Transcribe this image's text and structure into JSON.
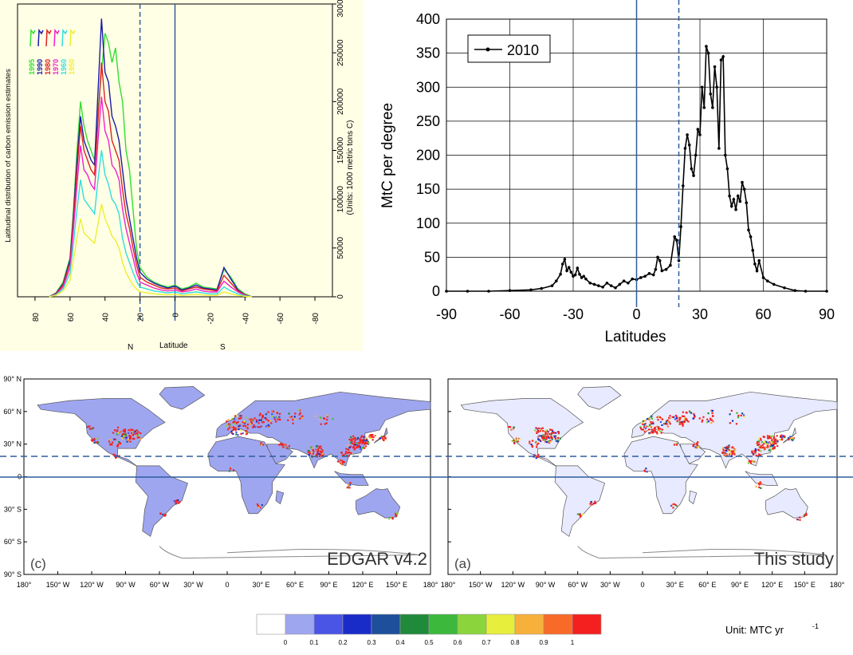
{
  "chart_data": [
    {
      "type": "line",
      "panel": "left",
      "ylabel": "Latitudinal distribution of carbon emission estimates",
      "ylabel_right": "(Units: 1000 metric tons C)",
      "xlabel": "Latitude",
      "x_hemisphere_labels": [
        "N",
        "S"
      ],
      "x_ticks": [
        80,
        60,
        40,
        20,
        0,
        -20,
        -40,
        -60,
        -80
      ],
      "x_tick_labels": [
        "80",
        "60",
        "40",
        "20",
        "0",
        "-20",
        "-40",
        "-60",
        "-80"
      ],
      "y_ticks": [
        0,
        50000,
        100000,
        150000,
        200000,
        250000,
        300000
      ],
      "y_tick_labels": [
        "0",
        "50000",
        "100000",
        "150000",
        "200000",
        "250000",
        "300000"
      ],
      "ylim": [
        0,
        300000
      ],
      "xlim": [
        90,
        -90
      ],
      "legend": [
        "1995",
        "1990",
        "1980",
        "1970",
        "1960",
        "1950"
      ],
      "series_colors": [
        "#33dd33",
        "#1a1aaa",
        "#dd2222",
        "#ee22cc",
        "#33dddd",
        "#eeee33"
      ],
      "x": [
        72,
        68,
        64,
        60,
        58,
        56,
        54,
        52,
        50,
        48,
        46,
        44,
        42,
        40,
        38,
        36,
        34,
        32,
        30,
        28,
        26,
        24,
        22,
        20,
        16,
        12,
        8,
        4,
        0,
        -4,
        -8,
        -12,
        -16,
        -20,
        -24,
        -28,
        -32,
        -36,
        -40,
        -44
      ],
      "series": [
        {
          "name": "1995",
          "values": [
            0,
            4000,
            15000,
            40000,
            90000,
            150000,
            200000,
            175000,
            160000,
            150000,
            140000,
            190000,
            230000,
            270000,
            260000,
            240000,
            255000,
            220000,
            200000,
            150000,
            130000,
            90000,
            50000,
            30000,
            20000,
            15000,
            12000,
            10000,
            12000,
            8000,
            10000,
            14000,
            10000,
            9000,
            8000,
            28000,
            20000,
            8000,
            3000,
            0
          ]
        },
        {
          "name": "1990",
          "values": [
            0,
            3500,
            13000,
            38000,
            85000,
            140000,
            185000,
            160000,
            150000,
            140000,
            135000,
            210000,
            285000,
            230000,
            220000,
            185000,
            175000,
            160000,
            130000,
            100000,
            80000,
            60000,
            40000,
            25000,
            18000,
            14000,
            11000,
            9000,
            11000,
            7000,
            9000,
            12000,
            9000,
            8000,
            7000,
            30000,
            18000,
            7000,
            2000,
            0
          ]
        },
        {
          "name": "1980",
          "values": [
            0,
            3000,
            12000,
            35000,
            80000,
            130000,
            175000,
            150000,
            140000,
            130000,
            125000,
            180000,
            240000,
            200000,
            190000,
            160000,
            150000,
            140000,
            110000,
            85000,
            70000,
            50000,
            33000,
            20000,
            15000,
            12000,
            9000,
            8000,
            9000,
            6000,
            8000,
            10000,
            8000,
            7000,
            6000,
            22000,
            14000,
            6000,
            2000,
            0
          ]
        },
        {
          "name": "1970",
          "values": [
            0,
            2500,
            10000,
            30000,
            70000,
            115000,
            155000,
            130000,
            125000,
            115000,
            110000,
            160000,
            205000,
            170000,
            160000,
            135000,
            130000,
            120000,
            90000,
            70000,
            55000,
            40000,
            25000,
            15000,
            12000,
            9000,
            7000,
            6000,
            7000,
            5000,
            6000,
            8000,
            6000,
            5000,
            5000,
            16000,
            10000,
            5000,
            1500,
            0
          ]
        },
        {
          "name": "1960",
          "values": [
            0,
            2000,
            8000,
            24000,
            55000,
            90000,
            120000,
            100000,
            95000,
            90000,
            85000,
            120000,
            150000,
            125000,
            115000,
            100000,
            95000,
            85000,
            60000,
            45000,
            35000,
            25000,
            16000,
            10000,
            8000,
            6000,
            5000,
            4000,
            5000,
            3000,
            4000,
            5000,
            4000,
            3000,
            3000,
            10000,
            6000,
            3000,
            1000,
            0
          ]
        },
        {
          "name": "1950",
          "values": [
            0,
            1500,
            6000,
            17000,
            38000,
            60000,
            80000,
            65000,
            62000,
            58000,
            55000,
            75000,
            95000,
            80000,
            72000,
            62000,
            58000,
            50000,
            35000,
            25000,
            18000,
            12000,
            8000,
            5000,
            4000,
            3000,
            2500,
            2000,
            2500,
            1500,
            2000,
            2500,
            2000,
            1500,
            1500,
            5000,
            3000,
            1500,
            500,
            0
          ]
        }
      ],
      "reference_lines": {
        "solid": 0,
        "dashed": 20
      }
    },
    {
      "type": "line",
      "panel": "right",
      "ylabel": "MtC per degree",
      "xlabel": "Latitudes",
      "x_ticks": [
        -90,
        -60,
        -30,
        0,
        30,
        60,
        90
      ],
      "y_ticks": [
        0,
        50,
        100,
        150,
        200,
        250,
        300,
        350,
        400
      ],
      "xlim": [
        -90,
        90
      ],
      "ylim": [
        0,
        400
      ],
      "grid": true,
      "legend_position": "top-left",
      "series": [
        {
          "name": "2010",
          "x": [
            -90,
            -80,
            -70,
            -60,
            -50,
            -45,
            -40,
            -38,
            -36,
            -35,
            -34,
            -33,
            -32,
            -31,
            -30,
            -29,
            -28,
            -27,
            -26,
            -25,
            -24,
            -22,
            -20,
            -18,
            -16,
            -14,
            -12,
            -10,
            -8,
            -6,
            -4,
            -2,
            0,
            2,
            4,
            6,
            8,
            9,
            10,
            11,
            12,
            14,
            16,
            18,
            19,
            20,
            21,
            22,
            23,
            24,
            25,
            26,
            27,
            28,
            29,
            30,
            31,
            32,
            33,
            34,
            35,
            36,
            37,
            38,
            39,
            40,
            41,
            42,
            43,
            44,
            45,
            46,
            47,
            48,
            49,
            50,
            51,
            52,
            53,
            54,
            55,
            56,
            57,
            58,
            60,
            62,
            65,
            70,
            75,
            80,
            90
          ],
          "values": [
            0,
            0,
            0,
            1,
            2,
            4,
            8,
            15,
            25,
            40,
            47,
            30,
            35,
            28,
            22,
            24,
            34,
            25,
            20,
            22,
            18,
            12,
            10,
            8,
            6,
            12,
            8,
            5,
            10,
            15,
            12,
            18,
            17,
            20,
            22,
            26,
            24,
            32,
            50,
            45,
            30,
            32,
            38,
            80,
            75,
            45,
            95,
            155,
            210,
            230,
            215,
            180,
            170,
            200,
            238,
            230,
            300,
            270,
            360,
            350,
            290,
            270,
            330,
            300,
            210,
            340,
            345,
            200,
            180,
            140,
            125,
            135,
            120,
            140,
            132,
            160,
            150,
            130,
            90,
            80,
            60,
            40,
            30,
            45,
            20,
            15,
            10,
            5,
            1,
            0,
            0
          ]
        }
      ],
      "reference_lines": {
        "solid": 0,
        "dashed": 20
      }
    }
  ],
  "maps": {
    "lat_labels": [
      "90° N",
      "60° N",
      "30° N",
      "0",
      "30° S",
      "60° S",
      "90° S"
    ],
    "lon_labels": [
      "180°",
      "150° W",
      "120° W",
      "90° W",
      "60° W",
      "30° W",
      "0",
      "30° E",
      "60° E",
      "90° E",
      "120° E",
      "150° E",
      "180°"
    ],
    "left": {
      "panel_label": "(c)",
      "title": "EDGAR v4.2"
    },
    "right": {
      "panel_label": "(a)",
      "title": "This study"
    }
  },
  "colorbar": {
    "tick_labels": [
      "0",
      "0.1",
      "0.2",
      "0.3",
      "0.4",
      "0.5",
      "0.6",
      "0.7",
      "0.8",
      "0.9",
      "1"
    ],
    "colors": [
      "#ffffff",
      "#9fa6f0",
      "#4a55e6",
      "#1a2cc8",
      "#1e4f9a",
      "#1e8a3a",
      "#3cb83c",
      "#8cd43c",
      "#e8ee3c",
      "#f8b03c",
      "#f86a28",
      "#f42020"
    ],
    "unit_label": "Unit: MTC yr",
    "unit_exponent": "-1"
  },
  "colors": {
    "ref_line": "#2f5d9e",
    "land_fill": "#9fa6f0",
    "emission_hot": "#f42020"
  }
}
